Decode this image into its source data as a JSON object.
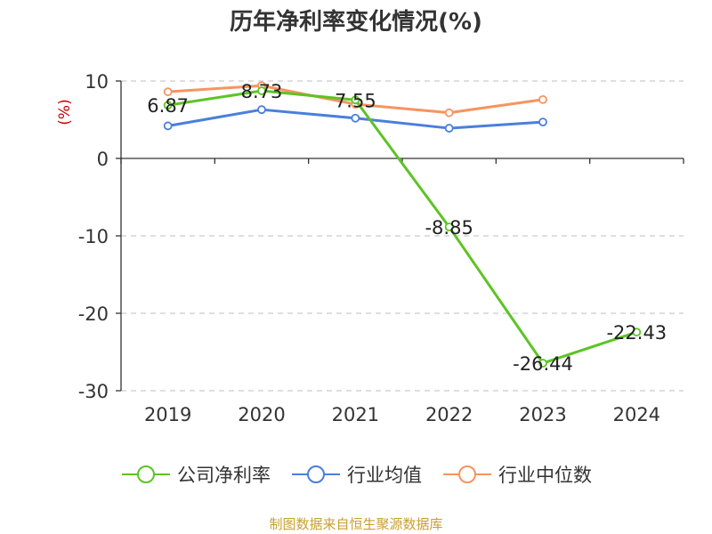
{
  "colors": {
    "company": "#5cc424",
    "avg": "#4a7fdc",
    "median": "#f79460",
    "axis": "#333333",
    "grid": "#cccccc",
    "ylabel": "#cc0000",
    "source": "#c8a030"
  },
  "chart_data": {
    "type": "line",
    "title": "历年净利率变化情况(%)",
    "ylabel": "(%)",
    "categories": [
      "2019",
      "2020",
      "2021",
      "2022",
      "2023",
      "2024"
    ],
    "ylim": [
      -30,
      10
    ],
    "yticks": [
      10,
      0,
      -10,
      -20,
      -30
    ],
    "grid": true,
    "legend_position": "bottom",
    "series": [
      {
        "name": "公司净利率",
        "values": [
          6.87,
          8.73,
          7.55,
          -8.85,
          -26.44,
          -22.43
        ],
        "labels": [
          "6.87",
          "8.73",
          "7.55",
          "-8.85",
          "-26.44",
          "-22.43"
        ]
      },
      {
        "name": "行业均值",
        "values": [
          4.2,
          6.3,
          5.2,
          3.9,
          4.7,
          null
        ]
      },
      {
        "name": "行业中位数",
        "values": [
          8.6,
          9.4,
          7.0,
          5.9,
          7.6,
          null
        ]
      }
    ]
  },
  "source": "制图数据来自恒生聚源数据库"
}
